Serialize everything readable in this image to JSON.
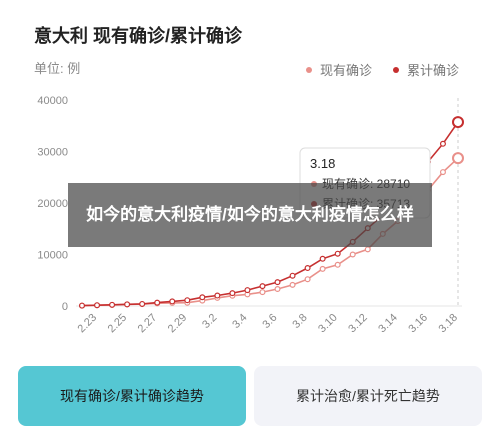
{
  "header": {
    "title": "意大利 现有确诊/累计确诊",
    "unit": "单位: 例"
  },
  "tooltip": {
    "date": "3.18",
    "rows": [
      "现有确诊: 28710",
      "累计确诊: 35713"
    ]
  },
  "overlay_text": "如今的意大利疫情/如今的意大利疫情怎么样",
  "tabs": [
    {
      "label": "现有确诊/累计确诊趋势",
      "active": true
    },
    {
      "label": "累计治愈/累计死亡趋势",
      "active": false
    }
  ],
  "colors": {
    "current": "#e9908a",
    "cumulative": "#c62f2f",
    "tab_active": "#55c7d3"
  },
  "chart_data": {
    "type": "line",
    "title": "",
    "x": [
      "2.22",
      "2.23",
      "2.24",
      "2.25",
      "2.26",
      "2.27",
      "2.28",
      "2.29",
      "3.1",
      "3.2",
      "3.3",
      "3.4",
      "3.5",
      "3.6",
      "3.7",
      "3.8",
      "3.9",
      "3.10",
      "3.11",
      "3.12",
      "3.13",
      "3.14",
      "3.15",
      "3.16",
      "3.17",
      "3.18"
    ],
    "tick_labels": [
      "2.23",
      "2.25",
      "2.27",
      "2.29",
      "3.2",
      "3.4",
      "3.6",
      "3.8",
      "3.10",
      "3.12",
      "3.14",
      "3.16",
      "3.18"
    ],
    "yticks": [
      0,
      10000,
      20000,
      30000,
      40000
    ],
    "ylim": [
      0,
      40000
    ],
    "series": [
      {
        "name": "现有确诊",
        "values": [
          62,
          150,
          220,
          310,
          370,
          520,
          600,
          640,
          1050,
          1580,
          2000,
          2250,
          2700,
          3300,
          4100,
          5200,
          7200,
          8000,
          10000,
          11000,
          14000,
          16500,
          19500,
          22500,
          26000,
          28710
        ]
      },
      {
        "name": "累计确诊",
        "values": [
          76,
          152,
          229,
          322,
          400,
          655,
          888,
          1128,
          1694,
          2036,
          2502,
          3089,
          3858,
          4636,
          5883,
          7375,
          9172,
          10149,
          12462,
          15113,
          17660,
          21157,
          24747,
          27980,
          31506,
          35713
        ]
      }
    ],
    "legend": "top-right",
    "grid": false
  }
}
